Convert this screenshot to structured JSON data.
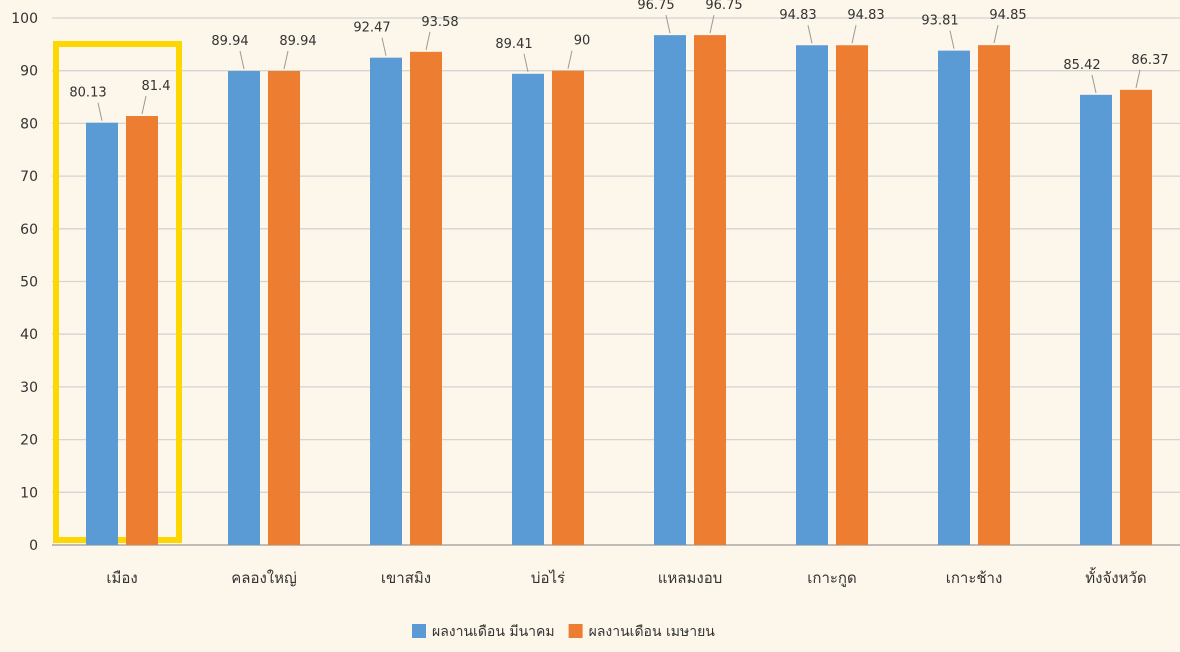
{
  "chart_data": {
    "type": "bar",
    "title": "",
    "xlabel": "",
    "ylabel": "",
    "ylim": [
      0,
      100
    ],
    "yticks": [
      0,
      10,
      20,
      30,
      40,
      50,
      60,
      70,
      80,
      90,
      100
    ],
    "grid": true,
    "legend_position": "bottom",
    "categories": [
      "เมือง",
      "คลองใหญ่",
      "เขาสมิง",
      "บ่อไร่",
      "แหลมงอบ",
      "เกาะกูด",
      "เกาะช้าง",
      "ทั้งจังหวัด"
    ],
    "series": [
      {
        "name": "ผลงานเดือน มีนาคม",
        "color": "#5b9bd5",
        "values": [
          80.13,
          89.94,
          92.47,
          89.41,
          96.75,
          94.83,
          93.81,
          85.42
        ],
        "labels": [
          "80.13",
          "89.94",
          "92.47",
          "89.41",
          "96.75",
          "94.83",
          "93.81",
          "85.42"
        ]
      },
      {
        "name": "ผลงานเดือน เมษายน",
        "color": "#ed7d31",
        "values": [
          81.4,
          89.94,
          93.58,
          90,
          96.75,
          94.83,
          94.85,
          86.37
        ],
        "labels": [
          "81.4",
          "89.94",
          "93.58",
          "90",
          "96.75",
          "94.83",
          "94.85",
          "86.37"
        ]
      }
    ],
    "highlight": {
      "category_index": 0,
      "color": "#ffd700"
    }
  }
}
